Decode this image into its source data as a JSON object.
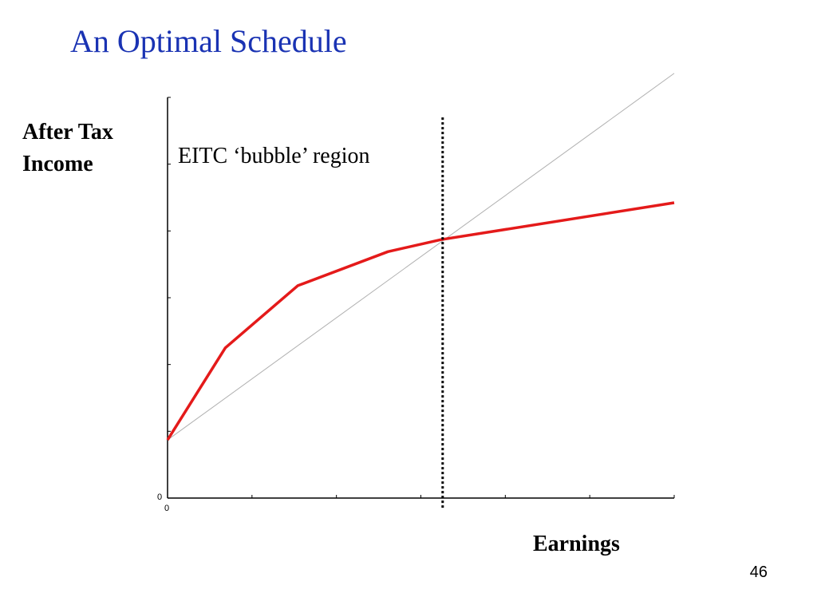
{
  "slide": {
    "title": "An Optimal Schedule",
    "page_number": "46"
  },
  "chart_data": {
    "type": "line",
    "ylabel_lines": [
      "After Tax",
      "Income"
    ],
    "xlabel": "Earnings",
    "annotation": "EITC ‘bubble’ region",
    "x_tick_label": "0",
    "y_tick_label": "0",
    "xlim": [
      0,
      100
    ],
    "ylim": [
      0,
      100
    ],
    "grid": false,
    "x_tick_count": 7,
    "y_tick_count": 7,
    "series": [
      {
        "values": [
          {
            "x": 0,
            "y": 14.5
          },
          {
            "x": 11.4,
            "y": 37.5
          },
          {
            "x": 25.7,
            "y": 53
          },
          {
            "x": 43.5,
            "y": 61.5
          },
          {
            "x": 54,
            "y": 64.5
          },
          {
            "x": 100,
            "y": 73.7
          }
        ],
        "color": "#e41a1a"
      },
      {
        "values": [
          {
            "x": 0,
            "y": 14.5
          },
          {
            "x": 100,
            "y": 106
          }
        ],
        "color": "#b0b0b0"
      }
    ],
    "vertical_marker": {
      "x": 54.3,
      "style": "dotted",
      "color": "#000000"
    }
  }
}
